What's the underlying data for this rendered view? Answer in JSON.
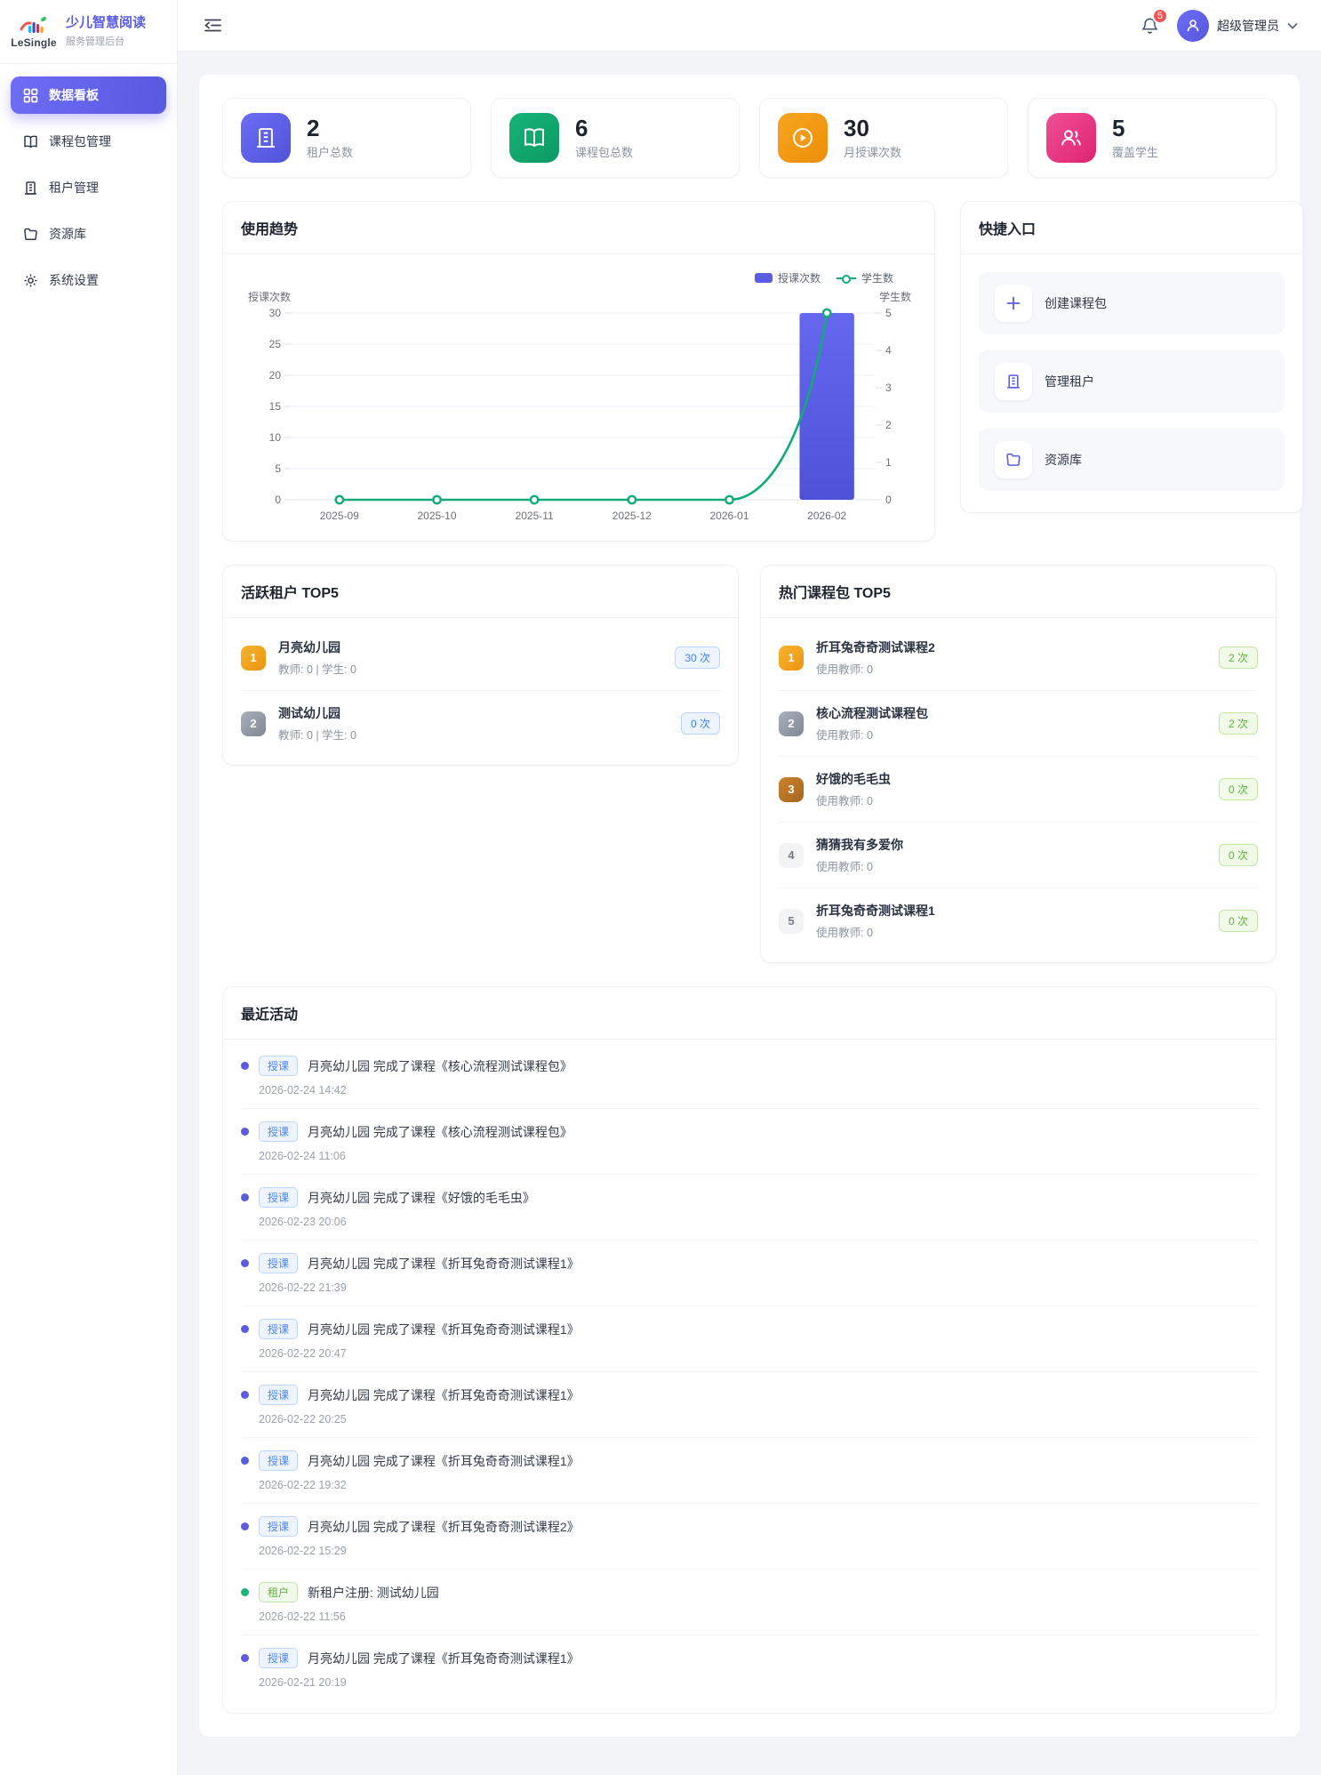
{
  "app": {
    "logo_text": "LeSingle",
    "title": "少儿智慧阅读",
    "subtitle": "服务管理后台"
  },
  "sidebar": {
    "items": [
      {
        "label": "数据看板",
        "icon": "dashboard-grid",
        "active": true
      },
      {
        "label": "课程包管理",
        "icon": "book",
        "active": false
      },
      {
        "label": "租户管理",
        "icon": "building",
        "active": false
      },
      {
        "label": "资源库",
        "icon": "folder",
        "active": false
      },
      {
        "label": "系统设置",
        "icon": "gear",
        "active": false
      }
    ]
  },
  "header": {
    "notification_count": "5",
    "user_name": "超级管理员"
  },
  "stats": [
    {
      "value": "2",
      "label": "租户总数",
      "icon": "building-icon",
      "color": "#5b5fe8"
    },
    {
      "value": "6",
      "label": "课程包总数",
      "icon": "book-icon",
      "color": "#10a56e"
    },
    {
      "value": "30",
      "label": "月授课次数",
      "icon": "play-icon",
      "color": "#f29a0d"
    },
    {
      "value": "5",
      "label": "覆盖学生",
      "icon": "users-icon",
      "color": "#e8307f"
    }
  ],
  "usage_trend": {
    "title": "使用趋势",
    "chart_data": {
      "type": "bar+line",
      "categories": [
        "2025-09",
        "2025-10",
        "2025-11",
        "2025-12",
        "2026-01",
        "2026-02"
      ],
      "series": [
        {
          "name": "授课次数",
          "type": "bar",
          "axis": "left",
          "color": "#5a5ce2",
          "values": [
            0,
            0,
            0,
            0,
            0,
            30
          ]
        },
        {
          "name": "学生数",
          "type": "line",
          "axis": "right",
          "color": "#12ab77",
          "values": [
            0,
            0,
            0,
            0,
            0,
            5
          ]
        }
      ],
      "left_axis": {
        "name": "授课次数",
        "min": 0,
        "max": 30,
        "ticks": [
          0,
          5,
          10,
          15,
          20,
          25,
          30
        ]
      },
      "right_axis": {
        "name": "学生数",
        "min": 0,
        "max": 5,
        "ticks": [
          0,
          1,
          2,
          3,
          4,
          5
        ]
      },
      "grid": true,
      "legend_position": "top-right"
    }
  },
  "quick_links": {
    "title": "快捷入口",
    "items": [
      {
        "label": "创建课程包",
        "icon": "plus-icon"
      },
      {
        "label": "管理租户",
        "icon": "building-icon"
      },
      {
        "label": "资源库",
        "icon": "folder-icon"
      }
    ]
  },
  "active_tenants": {
    "title": "活跃租户 TOP5",
    "items": [
      {
        "rank": "1",
        "name": "月亮幼儿园",
        "meta": "教师: 0 | 学生: 0",
        "count": "30 次"
      },
      {
        "rank": "2",
        "name": "测试幼儿园",
        "meta": "教师: 0 | 学生: 0",
        "count": "0 次"
      }
    ]
  },
  "hot_packages": {
    "title": "热门课程包 TOP5",
    "items": [
      {
        "rank": "1",
        "name": "折耳兔奇奇测试课程2",
        "meta": "使用教师: 0",
        "count": "2 次"
      },
      {
        "rank": "2",
        "name": "核心流程测试课程包",
        "meta": "使用教师: 0",
        "count": "2 次"
      },
      {
        "rank": "3",
        "name": "好饿的毛毛虫",
        "meta": "使用教师: 0",
        "count": "0 次"
      },
      {
        "rank": "4",
        "name": "猜猜我有多爱你",
        "meta": "使用教师: 0",
        "count": "0 次"
      },
      {
        "rank": "5",
        "name": "折耳兔奇奇测试课程1",
        "meta": "使用教师: 0",
        "count": "0 次"
      }
    ]
  },
  "recent_activities": {
    "title": "最近活动",
    "items": [
      {
        "kind": "teach",
        "badge": "授课",
        "text": "月亮幼儿园 完成了课程《核心流程测试课程包》",
        "time": "2026-02-24 14:42"
      },
      {
        "kind": "teach",
        "badge": "授课",
        "text": "月亮幼儿园 完成了课程《核心流程测试课程包》",
        "time": "2026-02-24 11:06"
      },
      {
        "kind": "teach",
        "badge": "授课",
        "text": "月亮幼儿园 完成了课程《好饿的毛毛虫》",
        "time": "2026-02-23 20:06"
      },
      {
        "kind": "teach",
        "badge": "授课",
        "text": "月亮幼儿园 完成了课程《折耳兔奇奇测试课程1》",
        "time": "2026-02-22 21:39"
      },
      {
        "kind": "teach",
        "badge": "授课",
        "text": "月亮幼儿园 完成了课程《折耳兔奇奇测试课程1》",
        "time": "2026-02-22 20:47"
      },
      {
        "kind": "teach",
        "badge": "授课",
        "text": "月亮幼儿园 完成了课程《折耳兔奇奇测试课程1》",
        "time": "2026-02-22 20:25"
      },
      {
        "kind": "teach",
        "badge": "授课",
        "text": "月亮幼儿园 完成了课程《折耳兔奇奇测试课程1》",
        "time": "2026-02-22 19:32"
      },
      {
        "kind": "teach",
        "badge": "授课",
        "text": "月亮幼儿园 完成了课程《折耳兔奇奇测试课程2》",
        "time": "2026-02-22 15:29"
      },
      {
        "kind": "tenant",
        "badge": "租户",
        "text": "新租户注册: 测试幼儿园",
        "time": "2026-02-22 11:56"
      },
      {
        "kind": "teach",
        "badge": "授课",
        "text": "月亮幼儿园 完成了课程《折耳兔奇奇测试课程1》",
        "time": "2026-02-21 20:19"
      }
    ]
  }
}
